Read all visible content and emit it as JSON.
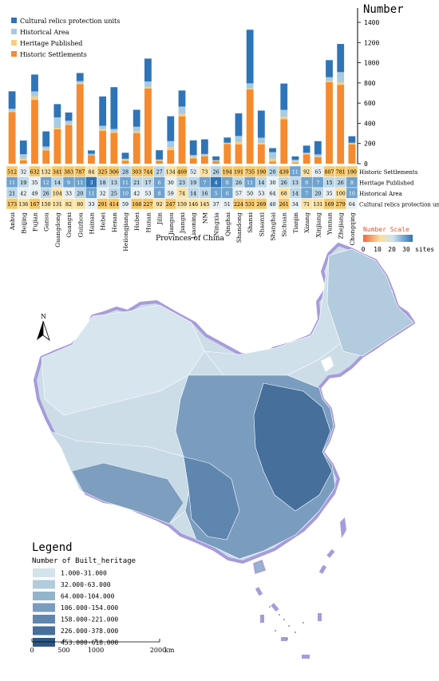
{
  "chart_data": {
    "type": "bar",
    "stacked": true,
    "ylabel": "Number",
    "ylim": [
      0,
      1400
    ],
    "yticks": [
      0,
      200,
      400,
      600,
      800,
      1000,
      1200,
      1400
    ],
    "xlabel": "Provinces of China",
    "categories": [
      "Anhui",
      "Beijing",
      "Fujian",
      "Gansu",
      "Guangdong",
      "Guangxi",
      "Guizhou",
      "Hainan",
      "Hebei",
      "Henan",
      "Heilongjiang",
      "Hubei",
      "Hunan",
      "Jilin",
      "Jiangsu",
      "Jiangxi",
      "Liaoning",
      "NM",
      "Ningxia",
      "Qinghai",
      "Shandong",
      "Shanxi",
      "Shaanxi",
      "Shanghai",
      "Sichuan",
      "Tianjin",
      "Xizang",
      "Xinjiang",
      "Yunnan",
      "Zhejiang",
      "Chongqing"
    ],
    "series": [
      {
        "name": "Historic Settlements",
        "color": "#f58a2e",
        "values": [
          512,
          32,
          632,
          132,
          341,
          383,
          787,
          84,
          325,
          306,
          28,
          303,
          744,
          27,
          134,
          469,
          52,
          73,
          26,
          194,
          191,
          735,
          190,
          20,
          439,
          11,
          92,
          65,
          807,
          781,
          190
        ]
      },
      {
        "name": "Heritage Published",
        "color": "#f7ce7c",
        "values": [
          11,
          19,
          35,
          12,
          14,
          9,
          11,
          3,
          18,
          13,
          11,
          21,
          17,
          6,
          30,
          23,
          19,
          7,
          4,
          8,
          26,
          11,
          14,
          30,
          26,
          13,
          9,
          7,
          15,
          26,
          8
        ]
      },
      {
        "name": "Historical Area",
        "color": "#a6cbe3",
        "values": [
          21,
          42,
          49,
          26,
          104,
          33,
          20,
          11,
          32,
          25,
          10,
          42,
          53,
          8,
          59,
          74,
          14,
          16,
          5,
          6,
          57,
          50,
          53,
          64,
          68,
          14,
          7,
          20,
          35,
          100,
          10
        ]
      },
      {
        "name": "Cultural relics protection units",
        "color": "#2f74b7",
        "values": [
          173,
          136,
          167,
          150,
          131,
          82,
          80,
          33,
          291,
          414,
          59,
          168,
          227,
          92,
          247,
          159,
          146,
          145,
          37,
          51,
          224,
          531,
          269,
          40,
          261,
          34,
          71,
          131,
          169,
          279,
          64
        ]
      }
    ],
    "number_scale": {
      "title": "Number Scale",
      "ticks": [
        "0",
        "10",
        "20",
        "30"
      ],
      "unit": "sites"
    }
  },
  "map": {
    "north_label": "N",
    "legend_title": "Legend",
    "legend_subtitle": "Number of Built_heritage",
    "classes": [
      {
        "label": "1.000-31.000",
        "color": "#d3e3ec"
      },
      {
        "label": "32.000-63.000",
        "color": "#b2cbdd"
      },
      {
        "label": "64.000-104.000",
        "color": "#94b3cd"
      },
      {
        "label": "106.000-154.000",
        "color": "#7a9dbf"
      },
      {
        "label": "158.000-221.000",
        "color": "#5f86af"
      },
      {
        "label": "226.000-378.000",
        "color": "#466f9c"
      },
      {
        "label": "453.000-618.000",
        "color": "#2e5884"
      }
    ],
    "scale_ticks": [
      "0",
      "500",
      "1000",
      "2000"
    ],
    "scale_unit": "km"
  }
}
